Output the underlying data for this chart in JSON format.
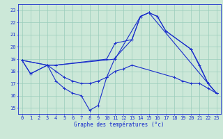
{
  "xlabel": "Graphe des températures (°c)",
  "bg_color": "#cce8d8",
  "grid_color": "#99ccbb",
  "line_color": "#1a2ecc",
  "xlim": [
    -0.5,
    23.5
  ],
  "ylim": [
    14.5,
    23.5
  ],
  "xticks": [
    0,
    1,
    2,
    3,
    4,
    5,
    6,
    7,
    8,
    9,
    10,
    11,
    12,
    13,
    14,
    15,
    16,
    17,
    18,
    19,
    20,
    21,
    22,
    23
  ],
  "yticks": [
    15,
    16,
    17,
    18,
    19,
    20,
    21,
    22,
    23
  ],
  "series": [
    {
      "x": [
        0,
        3,
        4,
        10,
        11,
        13,
        14,
        15,
        16,
        17,
        20,
        21,
        22,
        23
      ],
      "y": [
        18.9,
        18.5,
        18.5,
        19.0,
        20.3,
        20.6,
        22.5,
        22.8,
        22.5,
        21.3,
        19.8,
        18.5,
        17.0,
        16.2
      ]
    },
    {
      "x": [
        0,
        3,
        4,
        11,
        14,
        15,
        16,
        17,
        20,
        22,
        23
      ],
      "y": [
        18.9,
        18.5,
        18.5,
        19.0,
        22.5,
        22.8,
        22.5,
        21.3,
        19.8,
        17.0,
        16.2
      ]
    },
    {
      "x": [
        0,
        1,
        3,
        4,
        5,
        6,
        7,
        8,
        9,
        10,
        11,
        13,
        14,
        15,
        22,
        23
      ],
      "y": [
        18.9,
        17.8,
        18.5,
        17.2,
        16.6,
        16.2,
        16.0,
        14.8,
        15.2,
        17.5,
        19.1,
        20.6,
        22.5,
        22.8,
        17.0,
        16.2
      ]
    },
    {
      "x": [
        0,
        1,
        3,
        4,
        5,
        6,
        7,
        8,
        9,
        10,
        11,
        12,
        13,
        18,
        19,
        20,
        21,
        22,
        23
      ],
      "y": [
        18.9,
        17.8,
        18.5,
        18.0,
        17.5,
        17.2,
        17.0,
        17.0,
        17.2,
        17.5,
        18.0,
        18.2,
        18.5,
        17.5,
        17.2,
        17.0,
        17.0,
        16.6,
        16.2
      ]
    }
  ]
}
